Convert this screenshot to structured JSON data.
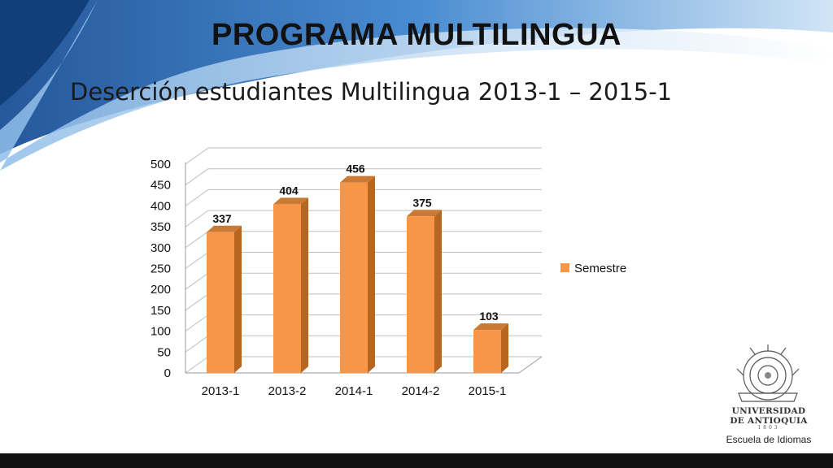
{
  "slide": {
    "title": "PROGRAMA MULTILINGUA",
    "subtitle": "Deserción estudiantes Multilingua 2013-1 – 2015-1"
  },
  "logo": {
    "name_line1": "UNIVERSIDAD",
    "name_line2": "DE ANTIOQUIA",
    "year": "1803",
    "school": "Escuela de Idiomas"
  },
  "colors": {
    "bar_front": "#F79646",
    "bar_side": "#B7651F",
    "bar_top": "#C97A36",
    "grid": "#bfbfbf",
    "bg_blue_dark": "#1f5fa8",
    "bg_blue_light": "#6aa8e0"
  },
  "chart_data": {
    "type": "bar",
    "categories": [
      "2013-1",
      "2013-2",
      "2014-1",
      "2014-2",
      "2015-1"
    ],
    "series": [
      {
        "name": "Semestre",
        "values": [
          337,
          404,
          456,
          375,
          103
        ]
      }
    ],
    "data_labels": [
      "337",
      "404",
      "456",
      "375",
      "103"
    ],
    "y_ticks": [
      0,
      50,
      100,
      150,
      200,
      250,
      300,
      350,
      400,
      450,
      500
    ],
    "ylim": [
      0,
      500
    ],
    "grid": true,
    "legend": "right",
    "style": "3d"
  }
}
